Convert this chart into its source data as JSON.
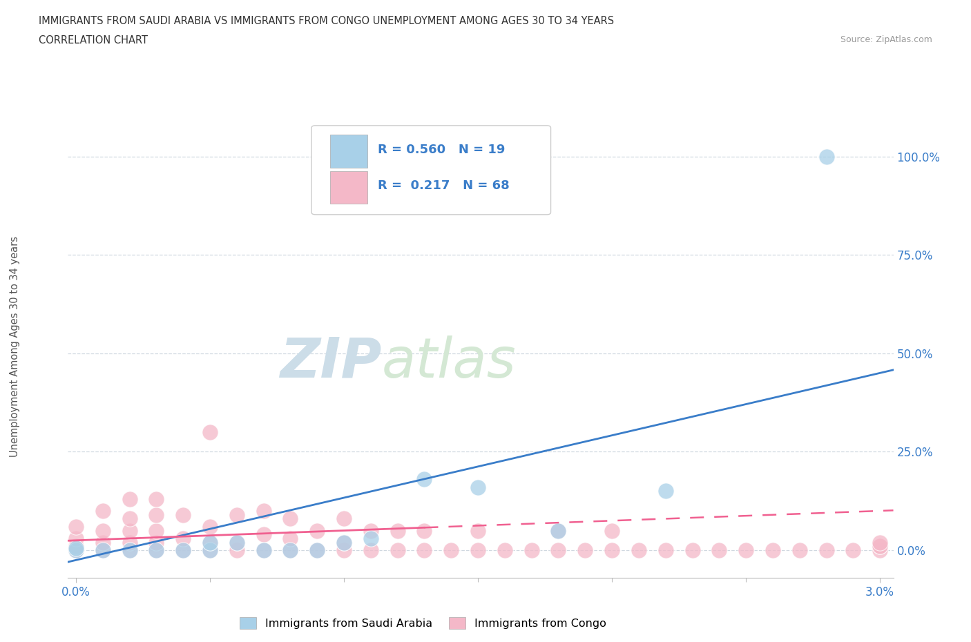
{
  "title_line1": "IMMIGRANTS FROM SAUDI ARABIA VS IMMIGRANTS FROM CONGO UNEMPLOYMENT AMONG AGES 30 TO 34 YEARS",
  "title_line2": "CORRELATION CHART",
  "source_text": "Source: ZipAtlas.com",
  "ylabel": "Unemployment Among Ages 30 to 34 years",
  "yticks": [
    "0.0%",
    "25.0%",
    "50.0%",
    "75.0%",
    "100.0%"
  ],
  "ytick_vals": [
    0.0,
    0.25,
    0.5,
    0.75,
    1.0
  ],
  "xlim": [
    -0.0003,
    0.0305
  ],
  "ylim": [
    -0.07,
    1.12
  ],
  "legend1_label": "Immigrants from Saudi Arabia",
  "legend2_label": "Immigrants from Congo",
  "r1": "0.560",
  "n1": "19",
  "r2": "0.217",
  "n2": "68",
  "color_saudi": "#a8d0e8",
  "color_congo": "#f4b8c8",
  "line_saudi": "#3a7dc9",
  "line_congo": "#f06090",
  "watermark_zip": "ZIP",
  "watermark_atlas": "atlas",
  "saudi_x": [
    0.0,
    0.0,
    0.001,
    0.002,
    0.003,
    0.004,
    0.005,
    0.005,
    0.006,
    0.007,
    0.008,
    0.009,
    0.01,
    0.011,
    0.013,
    0.015,
    0.018,
    0.022,
    0.028
  ],
  "saudi_y": [
    0.0,
    0.005,
    0.0,
    0.0,
    0.0,
    0.0,
    0.0,
    0.02,
    0.02,
    0.0,
    0.0,
    0.0,
    0.02,
    0.03,
    0.18,
    0.16,
    0.05,
    0.15,
    1.0
  ],
  "congo_x": [
    0.0,
    0.0,
    0.0,
    0.0,
    0.001,
    0.001,
    0.001,
    0.001,
    0.002,
    0.002,
    0.002,
    0.002,
    0.002,
    0.003,
    0.003,
    0.003,
    0.003,
    0.003,
    0.004,
    0.004,
    0.004,
    0.005,
    0.005,
    0.005,
    0.005,
    0.006,
    0.006,
    0.006,
    0.007,
    0.007,
    0.007,
    0.008,
    0.008,
    0.008,
    0.009,
    0.009,
    0.01,
    0.01,
    0.01,
    0.011,
    0.011,
    0.012,
    0.012,
    0.013,
    0.013,
    0.014,
    0.015,
    0.015,
    0.016,
    0.017,
    0.018,
    0.018,
    0.019,
    0.02,
    0.02,
    0.021,
    0.022,
    0.023,
    0.024,
    0.025,
    0.026,
    0.027,
    0.028,
    0.029,
    0.03,
    0.03,
    0.03,
    0.03
  ],
  "congo_y": [
    0.0,
    0.01,
    0.03,
    0.06,
    0.0,
    0.02,
    0.05,
    0.1,
    0.0,
    0.02,
    0.05,
    0.08,
    0.13,
    0.0,
    0.02,
    0.05,
    0.09,
    0.13,
    0.0,
    0.03,
    0.09,
    0.0,
    0.02,
    0.06,
    0.3,
    0.0,
    0.02,
    0.09,
    0.0,
    0.04,
    0.1,
    0.0,
    0.03,
    0.08,
    0.0,
    0.05,
    0.0,
    0.02,
    0.08,
    0.0,
    0.05,
    0.0,
    0.05,
    0.0,
    0.05,
    0.0,
    0.0,
    0.05,
    0.0,
    0.0,
    0.0,
    0.05,
    0.0,
    0.0,
    0.05,
    0.0,
    0.0,
    0.0,
    0.0,
    0.0,
    0.0,
    0.0,
    0.0,
    0.0,
    0.0,
    0.01,
    0.01,
    0.02
  ]
}
